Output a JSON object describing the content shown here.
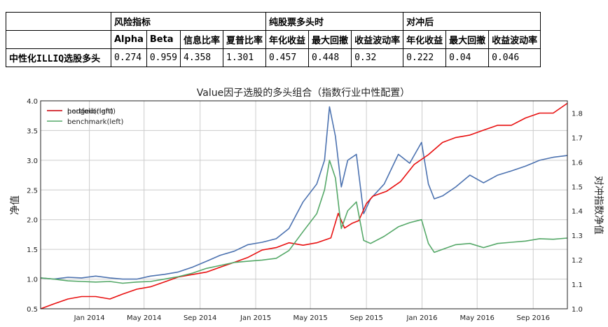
{
  "table": {
    "group_headers": [
      "风险指标",
      "纯股票多头时",
      "对冲后"
    ],
    "sub_headers": [
      "Alpha",
      "Beta",
      "信息比率",
      "夏普比率",
      "年化收益",
      "最大回撤",
      "收益波动率",
      "年化收益",
      "最大回撤",
      "收益波动率"
    ],
    "row_label": "中性化ILLIQ选股多头",
    "row_values": [
      "0.274",
      "0.959",
      "4.358",
      "1.301",
      "0.457",
      "0.448",
      "0.32",
      "0.222",
      "0.04",
      "0.046"
    ]
  },
  "chart_data": {
    "type": "line",
    "title": "Value因子选股的多头组合（指数行业中性配置）",
    "ylabel_left": "净值",
    "ylabel_right": "对冲指数净值",
    "x_range": [
      "2013-09-16",
      "2016-11-15"
    ],
    "ylim_left": [
      0.5,
      4.0
    ],
    "ylim_right": [
      1.0,
      1.85
    ],
    "x_ticks": [
      "Jan 2014",
      "May 2014",
      "Sep 2014",
      "Jan 2015",
      "May 2015",
      "Sep 2015",
      "Jan 2016",
      "May 2016",
      "Sep 2016"
    ],
    "x_tick_dates": [
      "2014-01-01",
      "2014-05-01",
      "2014-09-01",
      "2015-01-01",
      "2015-05-01",
      "2015-09-01",
      "2016-01-01",
      "2016-05-01",
      "2016-09-01"
    ],
    "y_ticks_left": [
      "0.5",
      "1.0",
      "1.5",
      "2.0",
      "2.5",
      "3.0",
      "3.5",
      "4.0"
    ],
    "y_ticks_right": [
      "1.0",
      "1.1",
      "1.2",
      "1.3",
      "1.4",
      "1.5",
      "1.6",
      "1.7",
      "1.8"
    ],
    "grid": true,
    "legend_position": "top-left",
    "legend": [
      "portfolio(left)",
      "hedged(right)",
      "benchmark(left)"
    ],
    "series": [
      {
        "name": "portfolio(left)",
        "axis": "left",
        "color": "#4c72b0",
        "points": [
          [
            "2013-09-16",
            1.02
          ],
          [
            "2013-10-15",
            1.0
          ],
          [
            "2013-11-15",
            1.03
          ],
          [
            "2013-12-15",
            1.02
          ],
          [
            "2014-01-15",
            1.05
          ],
          [
            "2014-02-15",
            1.02
          ],
          [
            "2014-03-15",
            1.0
          ],
          [
            "2014-04-15",
            1.0
          ],
          [
            "2014-05-15",
            1.05
          ],
          [
            "2014-06-15",
            1.08
          ],
          [
            "2014-07-15",
            1.12
          ],
          [
            "2014-08-15",
            1.2
          ],
          [
            "2014-09-15",
            1.3
          ],
          [
            "2014-10-15",
            1.4
          ],
          [
            "2014-11-15",
            1.47
          ],
          [
            "2014-12-15",
            1.58
          ],
          [
            "2015-01-15",
            1.62
          ],
          [
            "2015-02-15",
            1.68
          ],
          [
            "2015-03-15",
            1.85
          ],
          [
            "2015-04-15",
            2.3
          ],
          [
            "2015-05-15",
            2.6
          ],
          [
            "2015-06-01",
            3.0
          ],
          [
            "2015-06-12",
            3.9
          ],
          [
            "2015-06-25",
            3.4
          ],
          [
            "2015-07-08",
            2.55
          ],
          [
            "2015-07-22",
            3.0
          ],
          [
            "2015-08-10",
            3.1
          ],
          [
            "2015-08-26",
            2.1
          ],
          [
            "2015-09-10",
            2.35
          ],
          [
            "2015-10-10",
            2.6
          ],
          [
            "2015-11-10",
            3.1
          ],
          [
            "2015-12-05",
            2.95
          ],
          [
            "2015-12-31",
            3.3
          ],
          [
            "2016-01-15",
            2.6
          ],
          [
            "2016-01-28",
            2.35
          ],
          [
            "2016-02-15",
            2.4
          ],
          [
            "2016-03-15",
            2.55
          ],
          [
            "2016-04-15",
            2.75
          ],
          [
            "2016-05-15",
            2.62
          ],
          [
            "2016-06-15",
            2.75
          ],
          [
            "2016-07-15",
            2.82
          ],
          [
            "2016-08-15",
            2.9
          ],
          [
            "2016-09-15",
            3.0
          ],
          [
            "2016-10-15",
            3.05
          ],
          [
            "2016-11-15",
            3.08
          ]
        ]
      },
      {
        "name": "hedged(right)",
        "axis": "right",
        "color": "#e81010",
        "points": [
          [
            "2013-09-16",
            1.0
          ],
          [
            "2013-10-15",
            1.02
          ],
          [
            "2013-11-15",
            1.04
          ],
          [
            "2013-12-15",
            1.05
          ],
          [
            "2014-01-15",
            1.05
          ],
          [
            "2014-02-15",
            1.04
          ],
          [
            "2014-03-15",
            1.06
          ],
          [
            "2014-04-15",
            1.08
          ],
          [
            "2014-05-15",
            1.09
          ],
          [
            "2014-06-15",
            1.11
          ],
          [
            "2014-07-15",
            1.13
          ],
          [
            "2014-08-15",
            1.14
          ],
          [
            "2014-09-15",
            1.15
          ],
          [
            "2014-10-15",
            1.17
          ],
          [
            "2014-11-15",
            1.19
          ],
          [
            "2014-12-15",
            1.21
          ],
          [
            "2015-01-15",
            1.24
          ],
          [
            "2015-02-15",
            1.25
          ],
          [
            "2015-03-15",
            1.27
          ],
          [
            "2015-04-15",
            1.26
          ],
          [
            "2015-05-15",
            1.27
          ],
          [
            "2015-06-15",
            1.29
          ],
          [
            "2015-07-01",
            1.39
          ],
          [
            "2015-07-15",
            1.33
          ],
          [
            "2015-08-01",
            1.35
          ],
          [
            "2015-08-15",
            1.36
          ],
          [
            "2015-09-01",
            1.43
          ],
          [
            "2015-09-15",
            1.46
          ],
          [
            "2015-10-15",
            1.48
          ],
          [
            "2015-11-15",
            1.52
          ],
          [
            "2015-12-15",
            1.59
          ],
          [
            "2016-01-15",
            1.63
          ],
          [
            "2016-02-15",
            1.68
          ],
          [
            "2016-03-15",
            1.7
          ],
          [
            "2016-04-15",
            1.71
          ],
          [
            "2016-05-15",
            1.73
          ],
          [
            "2016-06-15",
            1.75
          ],
          [
            "2016-07-15",
            1.75
          ],
          [
            "2016-08-15",
            1.78
          ],
          [
            "2016-09-15",
            1.8
          ],
          [
            "2016-10-15",
            1.8
          ],
          [
            "2016-11-15",
            1.84
          ]
        ]
      },
      {
        "name": "benchmark(left)",
        "axis": "left",
        "color": "#55a868",
        "points": [
          [
            "2013-09-16",
            1.02
          ],
          [
            "2013-10-15",
            1.0
          ],
          [
            "2013-11-15",
            0.97
          ],
          [
            "2013-12-15",
            0.96
          ],
          [
            "2014-01-15",
            0.95
          ],
          [
            "2014-02-15",
            0.96
          ],
          [
            "2014-03-15",
            0.93
          ],
          [
            "2014-04-15",
            0.95
          ],
          [
            "2014-05-15",
            0.96
          ],
          [
            "2014-06-15",
            1.0
          ],
          [
            "2014-07-15",
            1.04
          ],
          [
            "2014-08-15",
            1.1
          ],
          [
            "2014-09-15",
            1.18
          ],
          [
            "2014-10-15",
            1.23
          ],
          [
            "2014-11-15",
            1.28
          ],
          [
            "2014-12-15",
            1.3
          ],
          [
            "2015-01-15",
            1.32
          ],
          [
            "2015-02-15",
            1.35
          ],
          [
            "2015-03-15",
            1.48
          ],
          [
            "2015-04-15",
            1.8
          ],
          [
            "2015-05-15",
            2.1
          ],
          [
            "2015-06-01",
            2.5
          ],
          [
            "2015-06-12",
            3.0
          ],
          [
            "2015-06-25",
            2.7
          ],
          [
            "2015-07-08",
            1.85
          ],
          [
            "2015-07-22",
            2.15
          ],
          [
            "2015-08-10",
            2.3
          ],
          [
            "2015-08-26",
            1.65
          ],
          [
            "2015-09-10",
            1.6
          ],
          [
            "2015-10-10",
            1.72
          ],
          [
            "2015-11-10",
            1.88
          ],
          [
            "2015-12-05",
            1.95
          ],
          [
            "2015-12-31",
            2.0
          ],
          [
            "2016-01-15",
            1.6
          ],
          [
            "2016-01-28",
            1.45
          ],
          [
            "2016-02-15",
            1.5
          ],
          [
            "2016-03-15",
            1.58
          ],
          [
            "2016-04-15",
            1.6
          ],
          [
            "2016-05-15",
            1.53
          ],
          [
            "2016-06-15",
            1.6
          ],
          [
            "2016-07-15",
            1.62
          ],
          [
            "2016-08-15",
            1.64
          ],
          [
            "2016-09-15",
            1.68
          ],
          [
            "2016-10-15",
            1.67
          ],
          [
            "2016-11-15",
            1.69
          ]
        ]
      }
    ]
  }
}
